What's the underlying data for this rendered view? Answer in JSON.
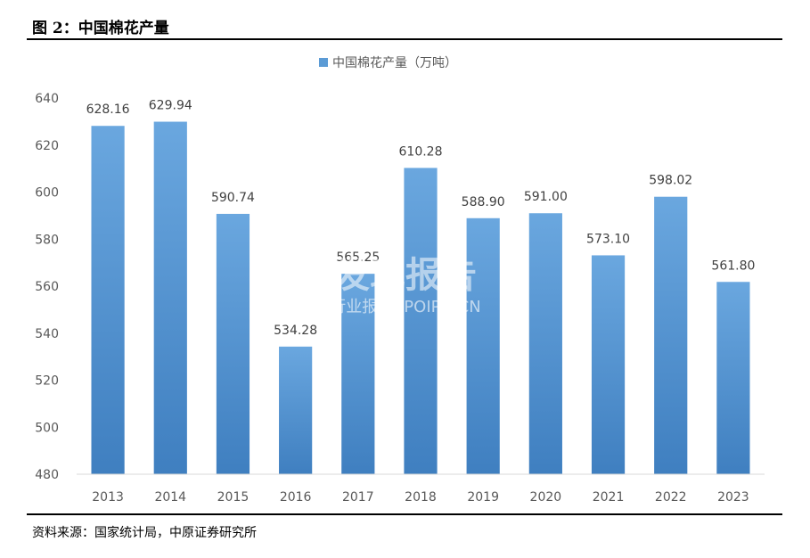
{
  "figure": {
    "title": "图 2：中国棉花产量",
    "source": "资料来源：国家统计局，中原证券研究所"
  },
  "watermark": {
    "main": "发现报告",
    "sub": "行业报告 IPOIPO.CN"
  },
  "colors": {
    "bar": "#5b9bd5",
    "bar_light": "#6aa7df",
    "bar_dark": "#3f7fc0",
    "axis": "#d9d9d9"
  },
  "chart_data": {
    "type": "bar",
    "title": "",
    "legend": [
      "中国棉花产量（万吨）"
    ],
    "legend_position": "top",
    "xlabel": "",
    "ylabel": "",
    "categories": [
      "2013",
      "2014",
      "2015",
      "2016",
      "2017",
      "2018",
      "2019",
      "2020",
      "2021",
      "2022",
      "2023"
    ],
    "series": [
      {
        "name": "中国棉花产量（万吨）",
        "values": [
          628.16,
          629.94,
          590.74,
          534.28,
          565.25,
          610.28,
          588.9,
          591.0,
          573.1,
          598.02,
          561.8
        ],
        "labels": [
          "628.16",
          "629.94",
          "590.74",
          "534.28",
          "565.25",
          "610.28",
          "588.90",
          "591.00",
          "573.10",
          "598.02",
          "561.80"
        ]
      }
    ],
    "ylim": [
      480,
      640
    ],
    "yticks": [
      480,
      500,
      520,
      540,
      560,
      580,
      600,
      620,
      640
    ],
    "grid": false
  }
}
